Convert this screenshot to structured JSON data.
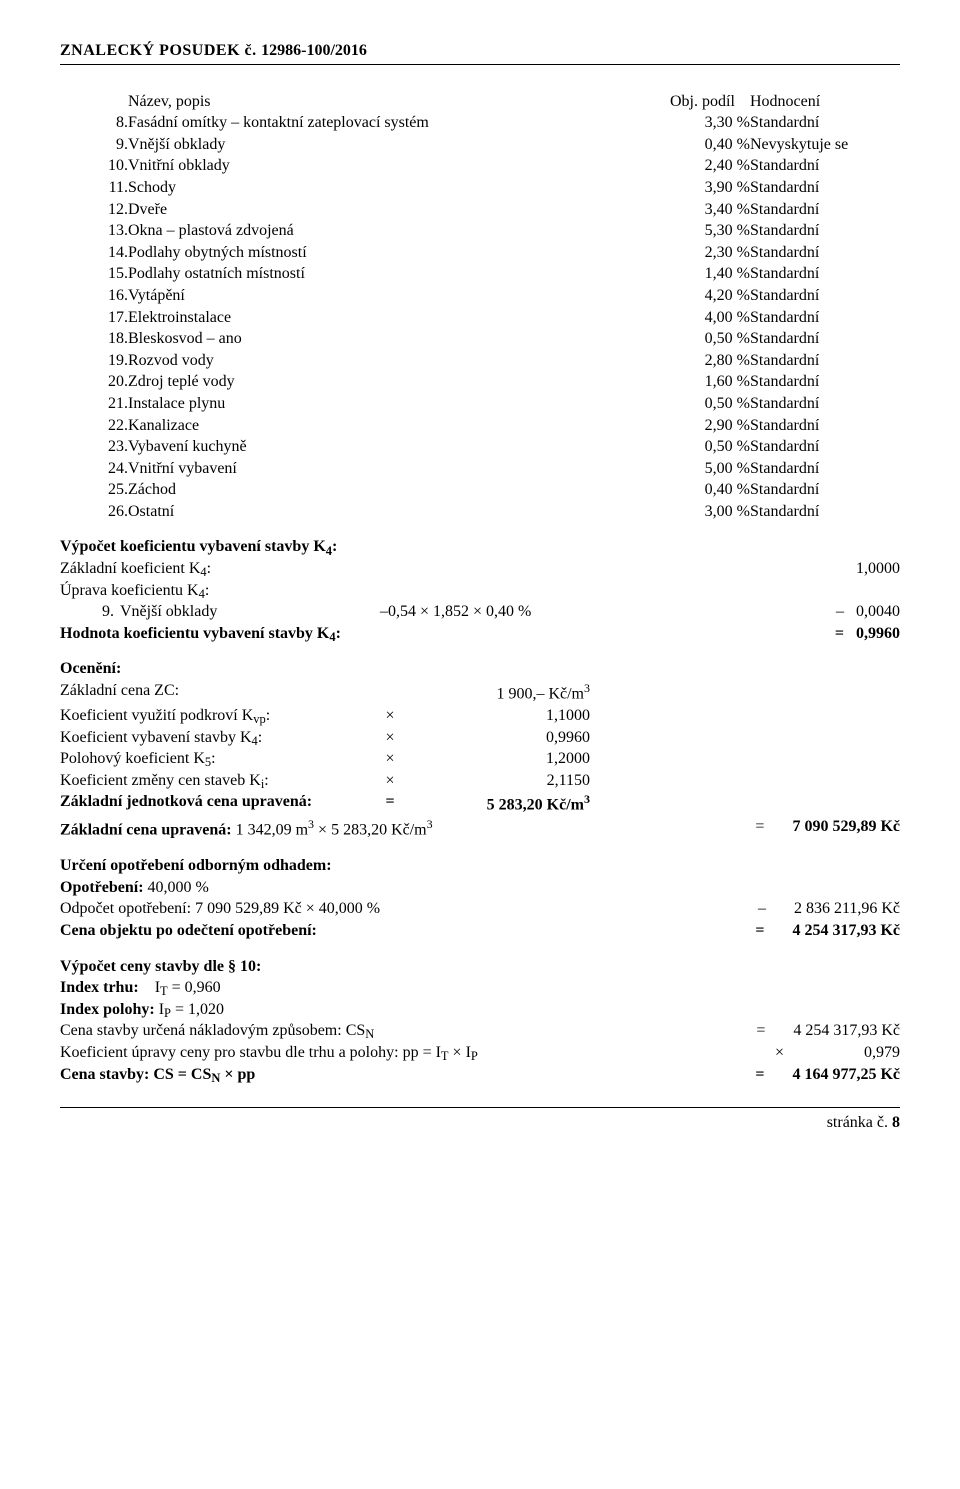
{
  "header": {
    "title": "ZNALECKÝ  POSUDEK č. ",
    "docnum": "12986-100/2016"
  },
  "table_header": {
    "name": "Název, popis",
    "share": "Obj. podíl",
    "rating": "Hodnocení"
  },
  "rows": [
    {
      "n": "8.",
      "label": "Fasádní omítky – kontaktní zateplovací systém",
      "pct": "3,30 %",
      "rating": "Standardní"
    },
    {
      "n": "9.",
      "label": "Vnější obklady",
      "pct": "0,40 %",
      "rating": "Nevyskytuje se"
    },
    {
      "n": "10.",
      "label": "Vnitřní obklady",
      "pct": "2,40 %",
      "rating": "Standardní"
    },
    {
      "n": "11.",
      "label": "Schody",
      "pct": "3,90 %",
      "rating": "Standardní"
    },
    {
      "n": "12.",
      "label": "Dveře",
      "pct": "3,40 %",
      "rating": "Standardní"
    },
    {
      "n": "13.",
      "label": "Okna – plastová zdvojená",
      "pct": "5,30 %",
      "rating": "Standardní"
    },
    {
      "n": "14.",
      "label": "Podlahy obytných místností",
      "pct": "2,30 %",
      "rating": "Standardní"
    },
    {
      "n": "15.",
      "label": "Podlahy ostatních místností",
      "pct": "1,40 %",
      "rating": "Standardní"
    },
    {
      "n": "16.",
      "label": "Vytápění",
      "pct": "4,20 %",
      "rating": "Standardní"
    },
    {
      "n": "17.",
      "label": "Elektroinstalace",
      "pct": "4,00 %",
      "rating": "Standardní"
    },
    {
      "n": "18.",
      "label": "Bleskosvod – ano",
      "pct": "0,50 %",
      "rating": "Standardní"
    },
    {
      "n": "19.",
      "label": "Rozvod vody",
      "pct": "2,80 %",
      "rating": "Standardní"
    },
    {
      "n": "20.",
      "label": "Zdroj teplé vody",
      "pct": "1,60 %",
      "rating": "Standardní"
    },
    {
      "n": "21.",
      "label": "Instalace plynu",
      "pct": "0,50 %",
      "rating": "Standardní"
    },
    {
      "n": "22.",
      "label": "Kanalizace",
      "pct": "2,90 %",
      "rating": "Standardní"
    },
    {
      "n": "23.",
      "label": "Vybavení kuchyně",
      "pct": "0,50 %",
      "rating": "Standardní"
    },
    {
      "n": "24.",
      "label": "Vnitřní vybavení",
      "pct": "5,00 %",
      "rating": "Standardní"
    },
    {
      "n": "25.",
      "label": "Záchod",
      "pct": "0,40 %",
      "rating": "Standardní"
    },
    {
      "n": "26.",
      "label": "Ostatní",
      "pct": "3,00 %",
      "rating": "Standardní"
    }
  ],
  "k4": {
    "title": "Výpočet koeficientu vybavení stavby K",
    "title_suffix": ":",
    "base_label": "Základní koeficient K",
    "base_suffix": ":",
    "base_value": "1,0000",
    "adj_label": "Úprava koeficientu K",
    "adj_suffix": ":",
    "adj_num": "9.",
    "adj_name": "Vnější obklady",
    "adj_expr": "–0,54 × 1,852 × 0,40 %",
    "adj_value": "–   0,0040",
    "hod_label": "Hodnota koeficientu vybavení stavby K",
    "hod_suffix": ":",
    "hod_value": "=   0,9960"
  },
  "oceneni": {
    "title": "Ocenění:",
    "rows": [
      {
        "l": "Základní cena ZC:",
        "op": "",
        "v": "1 900,–  Kč/m",
        "sup": "3"
      },
      {
        "l": "Koeficient využití podkroví K",
        "sub": "vp",
        "suf": ":",
        "op": "×",
        "v": "1,1000"
      },
      {
        "l": "Koeficient vybavení stavby K",
        "sub": "4",
        "suf": ":",
        "op": "×",
        "v": "0,9960"
      },
      {
        "l": "Polohový koeficient K",
        "sub": "5",
        "suf": ":",
        "op": "×",
        "v": "1,2000"
      },
      {
        "l": "Koeficient změny cen staveb K",
        "sub": "i",
        "suf": ":",
        "op": "×",
        "v": "2,1150"
      }
    ],
    "unit_label": "Základní jednotková cena upravená:",
    "unit_op": "=",
    "unit_value": "5 283,20 Kč/m",
    "unit_sup": "3",
    "total_line_left": "Základní cena upravená:",
    "total_line_expr": " 1 342,09 m",
    "total_line_sup1": "3",
    "total_line_mid": " × 5 283,20 Kč/m",
    "total_line_sup2": "3",
    "total_eq": "=",
    "total_value": "7 090 529,89 Kč"
  },
  "opotrebeni": {
    "title": "Určení opotřebení odborným odhadem:",
    "line1_label": "Opotřebení:",
    "line1_value": " 40,000 %",
    "line2_label": "Odpočet opotřebení: 7 090 529,89 Kč × 40,000 %",
    "line2_value": "–       2 836 211,96 Kč",
    "line3_label": "Cena objektu po odečtení opotřebení:",
    "line3_value": "=       4 254 317,93 Kč"
  },
  "cena": {
    "title": "Výpočet ceny stavby dle § 10:",
    "index_trhu_left": "Index trhu:",
    "index_trhu_right": "I",
    "index_trhu_sub": "T",
    "index_trhu_eq": " = 0,960",
    "index_polohy_left": "Index polohy:",
    "index_polohy_right": " I",
    "index_polohy_sub": "P",
    "index_polohy_eq": " = 1,020",
    "csn_label": "Cena stavby určená nákladovým způsobem: CS",
    "csn_sub": "N",
    "csn_value": "=       4 254 317,93 Kč",
    "koef_label": "Koeficient úpravy ceny pro stavbu dle trhu a polohy: pp = I",
    "koef_sub1": "T",
    "koef_mid": " × I",
    "koef_sub2": "P",
    "koef_value": "×                    0,979",
    "final_label": "Cena stavby: CS = CS",
    "final_sub": "N",
    "final_mid": " × pp",
    "final_value": "=       4 164 977,25 Kč"
  },
  "footer": {
    "label": "stránka č.  ",
    "page": "8"
  }
}
